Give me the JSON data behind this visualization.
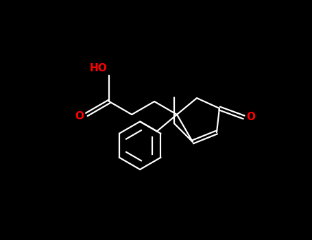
{
  "bg": "#000000",
  "bond_color": "#ffffff",
  "atom_color": "#ff0000",
  "figsize": [
    4.55,
    3.5
  ],
  "dpi": 100,
  "lw": 1.6,
  "font_size": 11,
  "ring_O_label": "O",
  "carbonyl_O_label": "O",
  "acid_O_label": "O",
  "acid_OH_label": "HO"
}
